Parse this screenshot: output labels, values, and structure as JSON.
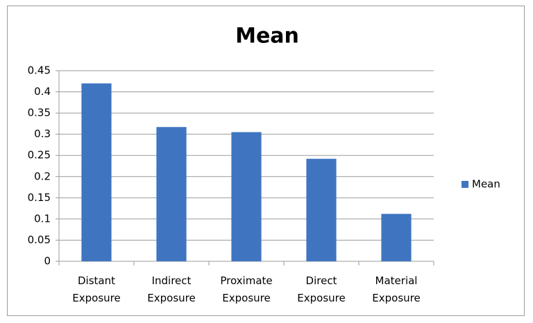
{
  "chart_data": {
    "type": "bar",
    "title": "Mean",
    "categories": [
      "Distant Exposure",
      "Indirect Exposure",
      "Proximate Exposure",
      "Direct Exposure",
      "Material Exposure"
    ],
    "series": [
      {
        "name": "Mean",
        "color": "#3f75c0",
        "values": [
          0.42,
          0.317,
          0.305,
          0.242,
          0.112
        ]
      }
    ],
    "ylim": [
      0,
      0.45
    ],
    "yticks": [
      0,
      0.05,
      0.1,
      0.15,
      0.2,
      0.25,
      0.3,
      0.35,
      0.4,
      0.45
    ],
    "grid": true,
    "legend": "right"
  }
}
